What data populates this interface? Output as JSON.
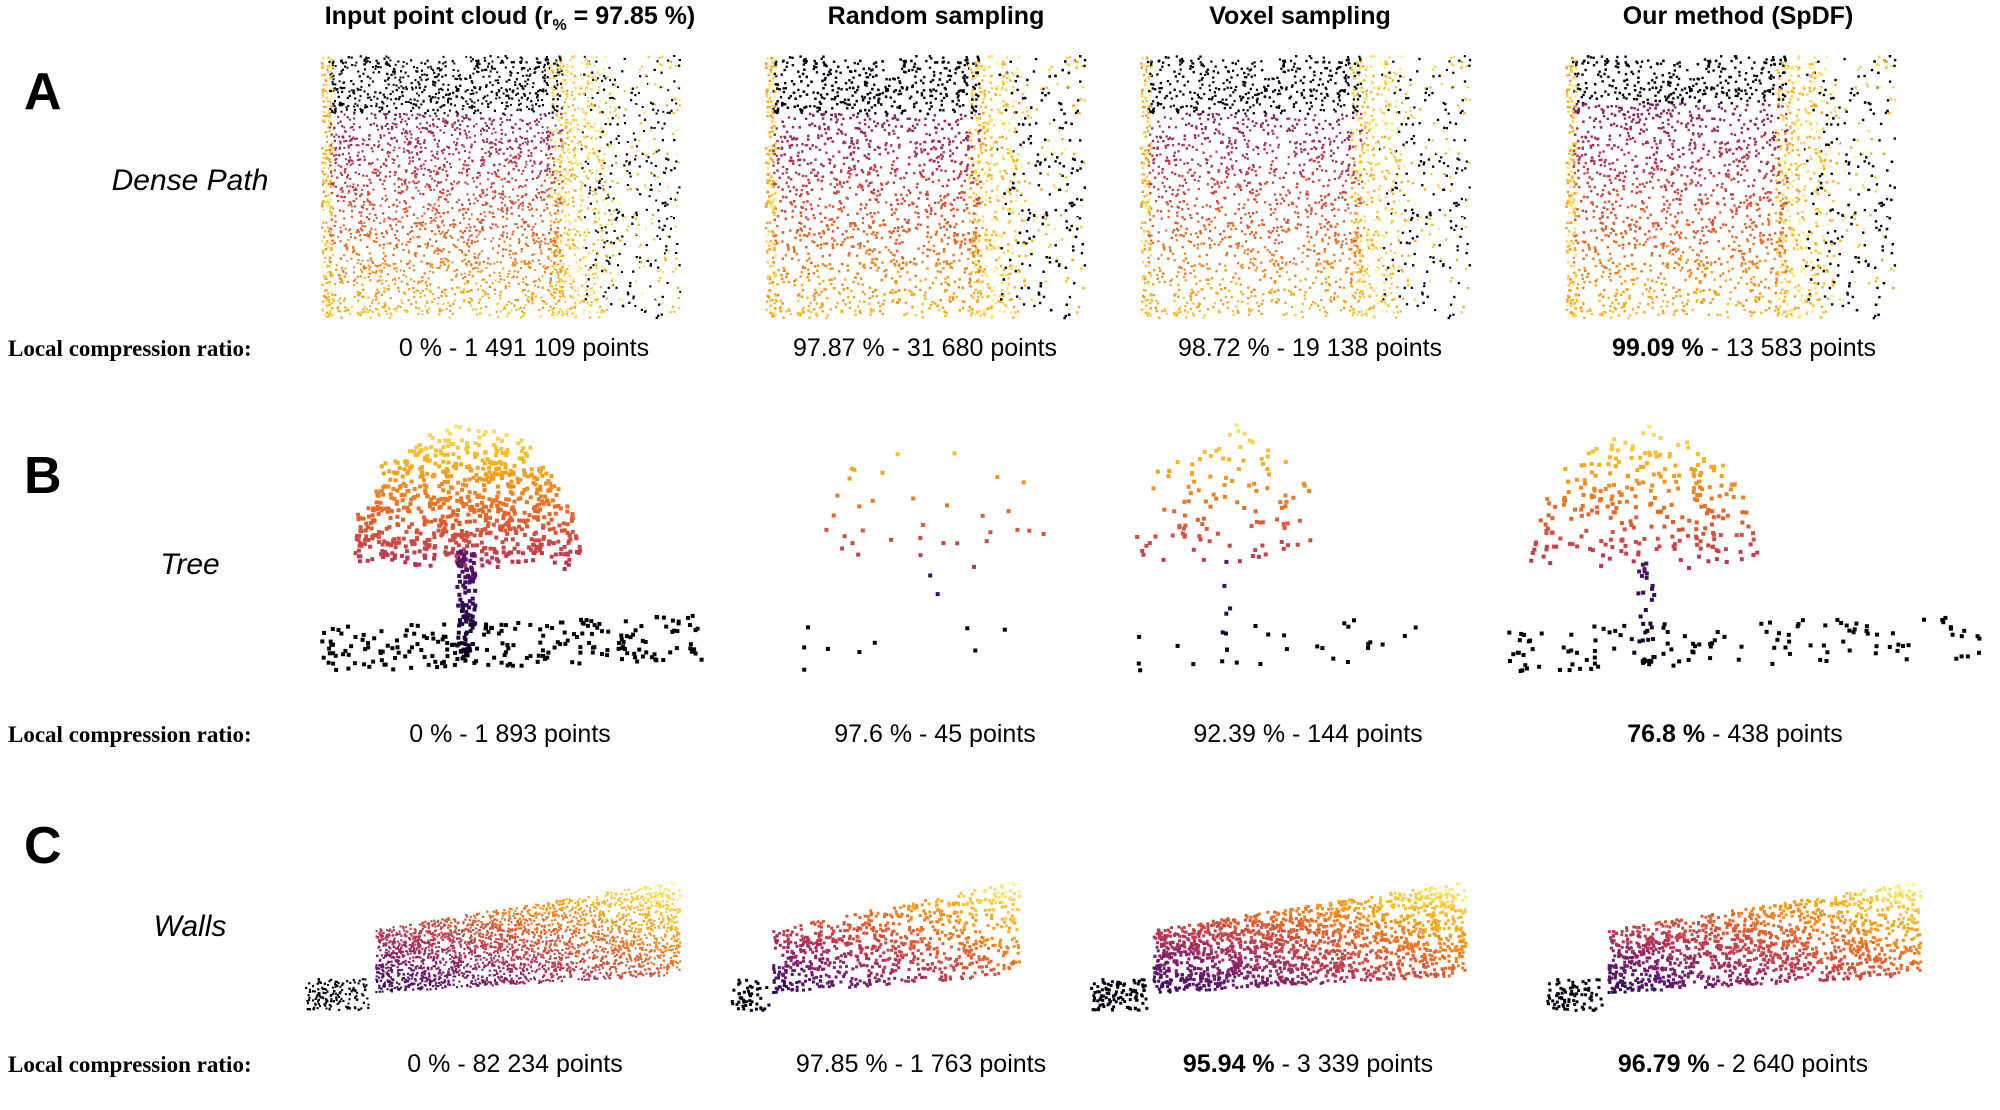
{
  "columns": [
    {
      "pre": "Input point cloud (r",
      "sub": "%",
      "post": " = 97.85 %)"
    },
    {
      "pre": "Random sampling",
      "sub": "",
      "post": ""
    },
    {
      "pre": "Voxel sampling",
      "sub": "",
      "post": ""
    },
    {
      "pre": "Our method (SpDF)",
      "sub": "",
      "post": ""
    }
  ],
  "lcr_label": "Local compression ratio:",
  "rows": [
    {
      "letter": "A",
      "name": "Dense Path",
      "stats": [
        {
          "ratio": "0 %",
          "points": " - 1 491 109 points",
          "bold": false
        },
        {
          "ratio": "97.87 %",
          "points": " - 31 680 points",
          "bold": false
        },
        {
          "ratio": "98.72 %",
          "points": " - 19 138 points",
          "bold": false
        },
        {
          "ratio": "99.09 %",
          "points": " - 13 583 points",
          "bold": true
        }
      ]
    },
    {
      "letter": "B",
      "name": "Tree",
      "stats": [
        {
          "ratio": "0 %",
          "points": " - 1 893 points",
          "bold": false
        },
        {
          "ratio": "97.6 %",
          "points": " - 45 points",
          "bold": false
        },
        {
          "ratio": "92.39 %",
          "points": " - 144 points",
          "bold": false
        },
        {
          "ratio": "76.8 %",
          "points": " - 438 points",
          "bold": true
        }
      ]
    },
    {
      "letter": "C",
      "name": "Walls",
      "stats": [
        {
          "ratio": "0 %",
          "points": " - 82 234 points",
          "bold": false
        },
        {
          "ratio": "97.85 %",
          "points": " - 1 763 points",
          "bold": false
        },
        {
          "ratio": "95.94 %",
          "points": " - 3 339 points",
          "bold": true
        },
        {
          "ratio": "96.79 %",
          "points": " - 2 640 points",
          "bold": true
        }
      ]
    }
  ],
  "colormap": [
    "#000004",
    "#320a5e",
    "#781c6d",
    "#bc3754",
    "#ed6925",
    "#fbb61a",
    "#fcffa4"
  ]
}
